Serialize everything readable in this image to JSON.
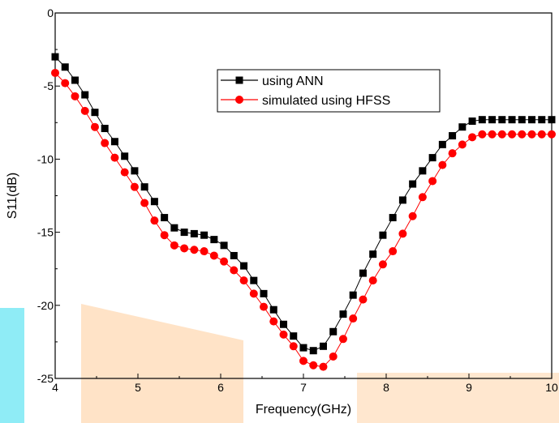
{
  "chart_data": {
    "type": "line",
    "xlabel": "Frequency(GHz)",
    "ylabel": "S11(dB)",
    "xlim": [
      4,
      10
    ],
    "ylim": [
      -25,
      0
    ],
    "x_ticks": [
      "4",
      "5",
      "6",
      "7",
      "8",
      "9",
      "10"
    ],
    "y_ticks": [
      "0",
      "-5",
      "-10",
      "-15",
      "-20",
      "-25"
    ],
    "grid": false,
    "legend_position": "top-center",
    "series": [
      {
        "name": "using ANN",
        "marker": "square",
        "color": "#000000",
        "x": [
          4.0,
          4.12,
          4.24,
          4.36,
          4.48,
          4.6,
          4.72,
          4.84,
          4.96,
          5.08,
          5.2,
          5.32,
          5.44,
          5.56,
          5.68,
          5.8,
          5.92,
          6.04,
          6.16,
          6.28,
          6.4,
          6.52,
          6.64,
          6.76,
          6.88,
          7.0,
          7.12,
          7.24,
          7.36,
          7.48,
          7.6,
          7.72,
          7.84,
          7.96,
          8.08,
          8.2,
          8.32,
          8.44,
          8.56,
          8.68,
          8.8,
          8.92,
          9.04,
          9.16,
          9.28,
          9.4,
          9.52,
          9.64,
          9.76,
          9.88,
          10.0
        ],
        "y": [
          -3.0,
          -3.7,
          -4.6,
          -5.6,
          -6.8,
          -7.9,
          -8.8,
          -9.8,
          -10.8,
          -11.9,
          -12.9,
          -14.0,
          -14.7,
          -15.0,
          -15.1,
          -15.2,
          -15.5,
          -15.9,
          -16.6,
          -17.3,
          -18.3,
          -19.2,
          -20.3,
          -21.3,
          -22.1,
          -22.9,
          -23.1,
          -22.8,
          -21.8,
          -20.6,
          -19.3,
          -17.8,
          -16.5,
          -15.2,
          -14.0,
          -12.8,
          -11.7,
          -10.8,
          -9.9,
          -9.0,
          -8.4,
          -7.8,
          -7.4,
          -7.3,
          -7.3,
          -7.3,
          -7.3,
          -7.3,
          -7.3,
          -7.3,
          -7.3
        ]
      },
      {
        "name": "simulated using HFSS",
        "marker": "circle",
        "color": "#ff0000",
        "x": [
          4.0,
          4.12,
          4.24,
          4.36,
          4.48,
          4.6,
          4.72,
          4.84,
          4.96,
          5.08,
          5.2,
          5.32,
          5.44,
          5.56,
          5.68,
          5.8,
          5.92,
          6.04,
          6.16,
          6.28,
          6.4,
          6.52,
          6.64,
          6.76,
          6.88,
          7.0,
          7.12,
          7.24,
          7.36,
          7.48,
          7.6,
          7.72,
          7.84,
          7.96,
          8.08,
          8.2,
          8.32,
          8.44,
          8.56,
          8.68,
          8.8,
          8.92,
          9.04,
          9.16,
          9.28,
          9.4,
          9.52,
          9.64,
          9.76,
          9.88,
          10.0
        ],
        "y": [
          -4.1,
          -4.8,
          -5.7,
          -6.7,
          -7.8,
          -8.9,
          -9.9,
          -10.9,
          -11.9,
          -13.0,
          -14.2,
          -15.2,
          -15.9,
          -16.1,
          -16.2,
          -16.3,
          -16.6,
          -17.0,
          -17.6,
          -18.3,
          -19.2,
          -20.1,
          -21.1,
          -22.0,
          -22.8,
          -23.8,
          -24.1,
          -24.2,
          -23.5,
          -22.3,
          -20.9,
          -19.6,
          -18.3,
          -17.2,
          -16.3,
          -15.1,
          -13.9,
          -12.6,
          -11.5,
          -10.4,
          -9.6,
          -9.0,
          -8.5,
          -8.3,
          -8.3,
          -8.3,
          -8.3,
          -8.3,
          -8.3,
          -8.3,
          -8.3
        ]
      }
    ]
  }
}
